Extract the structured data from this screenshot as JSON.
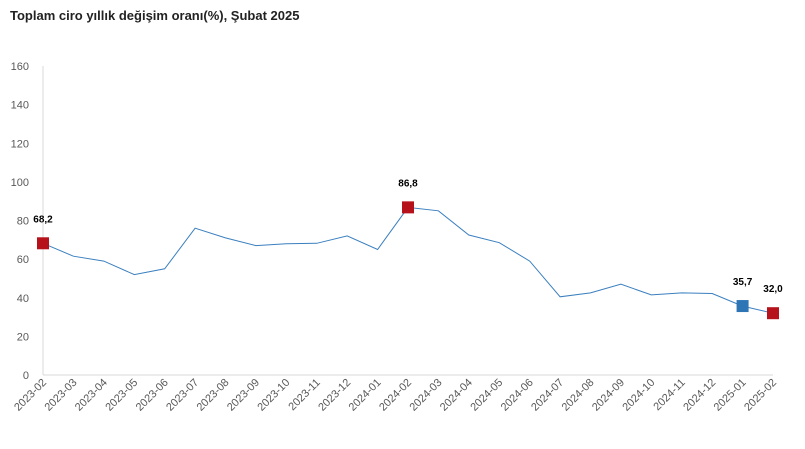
{
  "chart_data": {
    "type": "line",
    "title": "Toplam ciro yıllık değişim oranı(%), Şubat 2025",
    "xlabel": "",
    "ylabel": "",
    "ylim": [
      0,
      160
    ],
    "yticks": [
      0,
      20,
      40,
      60,
      80,
      100,
      120,
      140,
      160
    ],
    "grid": false,
    "legend": "none",
    "categories": [
      "2023-02",
      "2023-03",
      "2023-04",
      "2023-05",
      "2023-06",
      "2023-07",
      "2023-08",
      "2023-09",
      "2023-10",
      "2023-11",
      "2023-12",
      "2024-01",
      "2024-02",
      "2024-03",
      "2024-04",
      "2024-05",
      "2024-06",
      "2024-07",
      "2024-08",
      "2024-09",
      "2024-10",
      "2024-11",
      "2024-12",
      "2025-01",
      "2025-02"
    ],
    "series": [
      {
        "values": [
          68.2,
          61.5,
          59,
          52,
          55,
          76,
          71,
          67,
          68,
          68.2,
          72,
          65,
          86.8,
          85,
          72.5,
          68.5,
          59,
          40.5,
          42.5,
          47,
          41.5,
          42.5,
          42.2,
          35.7,
          32.0
        ]
      }
    ],
    "colors": {
      "line": "#3a7fbf",
      "highlight_red": "#b5121b",
      "highlight_blue": "#2e75b6",
      "axis": "#d9d9d9"
    },
    "markers": [
      {
        "index": 0,
        "color": "red",
        "label": "68,2"
      },
      {
        "index": 12,
        "color": "red",
        "label": "86,8"
      },
      {
        "index": 23,
        "color": "blue",
        "label": "35,7"
      },
      {
        "index": 24,
        "color": "red",
        "label": "32,0"
      }
    ]
  }
}
